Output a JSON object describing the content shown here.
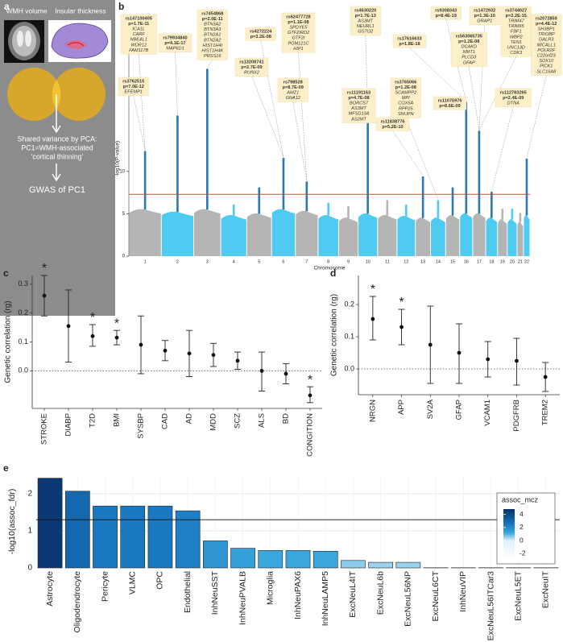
{
  "panel_labels": [
    "a",
    "b",
    "c",
    "d",
    "e"
  ],
  "panel_a": {
    "image_labels": [
      "WMH volume",
      "Insular thickness"
    ],
    "text_lines": [
      "Shared variance by PCA:",
      "PC1=WMH-associated",
      "‘cortical thinning’"
    ],
    "result": "GWAS of PC1"
  },
  "chart_data": [
    {
      "type": "manhattan",
      "ylabel": "-log10(P-value)",
      "xlabel": "Chromosome",
      "categories": [
        "1",
        "2",
        "3",
        "4",
        "5",
        "6",
        "7",
        "8",
        "9",
        "10",
        "11",
        "12",
        "13",
        "14",
        "15",
        "16",
        "17",
        "18",
        "19",
        "20",
        "21",
        "22"
      ],
      "peaks": [
        12.3,
        16.5,
        22,
        6,
        8,
        11.5,
        8.7,
        6.2,
        5.8,
        16.8,
        6.5,
        6,
        9.3,
        6.5,
        8,
        18.1,
        14.7,
        7.5,
        5.5,
        5.5,
        5,
        11.4
      ],
      "bulk": [
        5.5,
        5.2,
        5.5,
        4.8,
        5,
        5.5,
        5.3,
        4.8,
        4.5,
        5,
        4.8,
        4.7,
        4.5,
        4.5,
        4.8,
        5,
        5,
        4.5,
        4.3,
        4.3,
        4,
        4.8
      ],
      "colors": [
        "#b5b5b5",
        "#4fcbf2"
      ],
      "significant_color": "#2b78b5",
      "threshold": 7.3,
      "threshold_color": "#e0453a",
      "ylim": [
        0,
        23
      ],
      "yticks": [
        0,
        5,
        10
      ],
      "annotations": [
        {
          "snp": "rs147100405",
          "p": "p=1.7E-11",
          "genes": [
            "ICA1L",
            "CARF",
            "NBEAL1",
            "WDR12",
            "FAM117B"
          ]
        },
        {
          "snp": "rs79934840",
          "p": "p=4.1E-17",
          "genes": [
            "MAP6D1"
          ]
        },
        {
          "snp": "rs3762515",
          "p": "p=7.0E-12",
          "genes": [
            "EFEMP1"
          ]
        },
        {
          "snp": "rs7454868",
          "p": "p=2.0E-11",
          "genes": [
            "BTN3A2",
            "BTN3A3",
            "BTN2A1",
            "BTN2A2",
            "HIST1H4I",
            "HIST1H4K",
            "PRSS16"
          ]
        },
        {
          "snp": "rs4272224",
          "p": "p=3.2E-08",
          "genes": []
        },
        {
          "snp": "rs13208741",
          "p": "p=2.7E-09",
          "genes": [
            "RUNX2"
          ]
        },
        {
          "snp": "rs62477728",
          "p": "p=1.1E-08",
          "genes": [
            "SPDYE5",
            "GTF2IRD2",
            "GTF2I",
            "POM121C",
            "HIP1"
          ]
        },
        {
          "snp": "rs798528",
          "p": "p=8.7E-09",
          "genes": [
            "AMZ1",
            "GNA12"
          ]
        },
        {
          "snp": "rs4630220",
          "p": "p=1.7E-13",
          "genes": [
            "AS3MT",
            "NEURL1",
            "GSTO2"
          ]
        },
        {
          "snp": "rs11191163",
          "p": "p=4.7E-08",
          "genes": [
            "BORCS7",
            "AS3MT",
            "MFSD13A",
            "AS2MT"
          ]
        },
        {
          "snp": "rs3765066",
          "p": "p=1.2E-08",
          "genes": [
            "SCAMPP2",
            "MPI",
            "COX5A",
            "RPP25",
            "SNUPN"
          ]
        },
        {
          "snp": "rs17616633",
          "p": "p=1.8E-18",
          "genes": []
        },
        {
          "snp": "rs9308343",
          "p": "p=8.4E-19",
          "genes": []
        },
        {
          "snp": "rs11838776",
          "p": "p=5.2E-10",
          "genes": []
        },
        {
          "snp": "rs11075976",
          "p": "p=8.6E-09",
          "genes": []
        },
        {
          "snp": "rs1472932",
          "p": "p=1.3E-10",
          "genes": [
            "GRAP1"
          ]
        },
        {
          "snp": "rs563065735",
          "p": "p=1.2E-08",
          "genes": [
            "DCAKD",
            "NMT1",
            "PLCD3",
            "GFAP"
          ]
        },
        {
          "snp": "rs3744027",
          "p": "p=2.2E-15",
          "genes": [
            "TRIM47",
            "TRIM65",
            "FBF1",
            "WBP2",
            "TEN1",
            "UNC13D",
            "CDK3"
          ]
        },
        {
          "snp": "rs2072859",
          "p": "p=4.4E-12",
          "genes": [
            "SH3BP1",
            "TRIOBP",
            "GALR3",
            "MICALL1",
            "POLR2F",
            "C22orf23",
            "SOX10",
            "PICK1",
            "SLC16A8"
          ]
        },
        {
          "snp": "rs112783265",
          "p": "p=2.4E-09",
          "genes": [
            "DTNA"
          ]
        }
      ]
    },
    {
      "type": "errorbar",
      "ylabel": "Genetic correlation (rg)",
      "categories": [
        "STROKE",
        "DIABP",
        "T2D",
        "BMI",
        "SYSBP",
        "CAD",
        "AD",
        "MDD",
        "SCZ",
        "ALS",
        "BD",
        "CONGITION"
      ],
      "values": [
        0.26,
        0.155,
        0.12,
        0.115,
        0.09,
        0.07,
        0.06,
        0.055,
        0.035,
        0.0,
        -0.01,
        -0.085
      ],
      "lower": [
        0.19,
        0.03,
        0.085,
        0.09,
        -0.01,
        0.035,
        -0.02,
        0.015,
        0.005,
        -0.07,
        -0.045,
        -0.11
      ],
      "upper": [
        0.33,
        0.28,
        0.16,
        0.14,
        0.19,
        0.105,
        0.14,
        0.095,
        0.065,
        0.065,
        0.025,
        -0.055
      ],
      "annotations": [
        "*",
        null,
        "*",
        "*",
        null,
        null,
        null,
        null,
        null,
        null,
        null,
        "*"
      ],
      "hline": 0,
      "ylim": [
        -0.13,
        0.33
      ],
      "yticks": [
        {
          "value": 0,
          "label": "0.0"
        },
        0.1,
        0.2,
        0.3
      ]
    },
    {
      "type": "errorbar",
      "ylabel": "Genetic correlation (rg)",
      "categories": [
        "NRGN",
        "APP",
        "SV2A",
        "GFAP",
        "VCAM1",
        "PDGFRB",
        "TREM2"
      ],
      "values": [
        0.155,
        0.13,
        0.075,
        0.05,
        0.03,
        0.025,
        -0.025
      ],
      "lower": [
        0.09,
        0.075,
        -0.045,
        -0.045,
        -0.025,
        -0.05,
        -0.07
      ],
      "upper": [
        0.225,
        0.185,
        0.195,
        0.14,
        0.085,
        0.095,
        0.02
      ],
      "annotations": [
        "*",
        "*",
        null,
        null,
        null,
        null,
        null
      ],
      "hline": 0,
      "ylim": [
        -0.08,
        0.29
      ],
      "yticks": [
        {
          "value": 0,
          "label": "0.0"
        },
        0.1,
        0.2
      ]
    },
    {
      "type": "bar",
      "ylabel": "-log10(assoc_fdr)",
      "categories": [
        "Astrocyte",
        "Oligodendrocyte",
        "Pericyte",
        "VLMC",
        "OPC",
        "Endothelial",
        "InhNeuSST",
        "InhNeuPVALB",
        "Microglia",
        "InhNeuPAX6",
        "InhNeuLAMP5",
        "ExcNeuL4IT",
        "ExcNeuL6b",
        "ExcNeuL56NP",
        "ExcNeuL6CT",
        "InhNeuVIP",
        "ExcNeuL56ITCar3",
        "ExcNeuL5ET",
        "ExcNeuIT"
      ],
      "values": [
        2.42,
        2.07,
        1.67,
        1.67,
        1.67,
        1.54,
        0.73,
        0.53,
        0.47,
        0.47,
        0.45,
        0.2,
        0.15,
        0.15,
        0.005,
        0.005,
        0.005,
        0.005,
        0.005
      ],
      "color_name": "assoc_mcz",
      "color_values": [
        4.5,
        3,
        2.5,
        2.5,
        2.5,
        2.3,
        1.7,
        1.4,
        1.2,
        1.2,
        1.2,
        0.6,
        0.5,
        0.5,
        0,
        0,
        0,
        0,
        0
      ],
      "colorscale": [
        [
          -2.8,
          "#ffffff"
        ],
        [
          0,
          "#dff0fb"
        ],
        [
          1.2,
          "#3aa6de"
        ],
        [
          2.5,
          "#1a78c0"
        ],
        [
          4.8,
          "#08306b"
        ]
      ],
      "color_lim": [
        -2.8,
        4.8
      ],
      "color_ticks": [
        -2,
        0,
        2,
        4
      ],
      "hline": 1.3,
      "grid": true,
      "ylim": [
        0,
        2.5
      ],
      "yticks": [
        0,
        1,
        2
      ]
    }
  ]
}
